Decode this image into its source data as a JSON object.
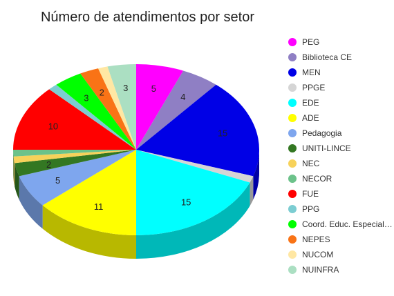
{
  "chart_data": {
    "type": "pie",
    "title": "Número de atendimentos por setor",
    "legend_position": "right",
    "slices": [
      {
        "name": "PEG",
        "value": 5,
        "color": "#ff00ff"
      },
      {
        "name": "Biblioteca CE",
        "value": 4,
        "color": "#8f7fc4"
      },
      {
        "name": "MEN",
        "value": 15,
        "color": "#0000e6"
      },
      {
        "name": "PPGE",
        "value": 1,
        "color": "#d5d5d5"
      },
      {
        "name": "EDE",
        "value": 15,
        "color": "#00ffff"
      },
      {
        "name": "ADE",
        "value": 11,
        "color": "#ffff00"
      },
      {
        "name": "Pedagogia",
        "value": 5,
        "color": "#7ea6ee"
      },
      {
        "name": "UNITI-LINCE",
        "value": 2,
        "color": "#337722"
      },
      {
        "name": "NEC",
        "value": 1,
        "color": "#f7d25a"
      },
      {
        "name": "NECOR",
        "value": 1,
        "color": "#6cc28a"
      },
      {
        "name": "FUE",
        "value": 10,
        "color": "#ff0000"
      },
      {
        "name": "PPG",
        "value": 1,
        "color": "#7ccdd2"
      },
      {
        "name": "Coord. Educ. Especial…",
        "value": 3,
        "color": "#00ff00"
      },
      {
        "name": "NEPES",
        "value": 2,
        "color": "#f97316"
      },
      {
        "name": "NUCOM",
        "value": 1,
        "color": "#ffe7a3"
      },
      {
        "name": "NUINFRA",
        "value": 3,
        "color": "#abdfc2"
      }
    ]
  }
}
